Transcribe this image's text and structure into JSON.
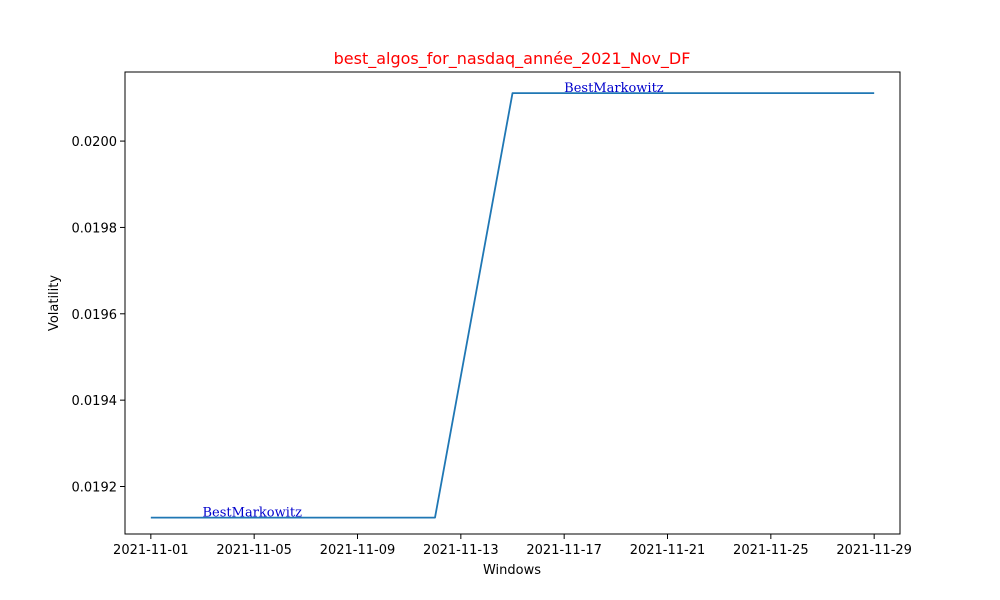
{
  "chart_data": {
    "type": "line",
    "title": "best_algos_for_nasdaq_année_2021_Nov_DF",
    "xlabel": "Windows",
    "ylabel": "Volatility",
    "x": [
      "2021-11-01",
      "2021-11-12",
      "2021-11-15",
      "2021-11-29"
    ],
    "series": [
      {
        "values": [
          0.019128,
          0.019128,
          0.020111,
          0.020111
        ],
        "color": "#1f77b4"
      }
    ],
    "xlim": [
      "2021-10-31",
      "2021-11-30"
    ],
    "ylim": [
      0.01909,
      0.02016
    ],
    "x_ticks": [
      "2021-11-01",
      "2021-11-05",
      "2021-11-09",
      "2021-11-13",
      "2021-11-17",
      "2021-11-21",
      "2021-11-25",
      "2021-11-29"
    ],
    "y_ticks": [
      0.0192,
      0.0194,
      0.0196,
      0.0198,
      0.02
    ],
    "y_tick_labels": [
      "0.0192",
      "0.0194",
      "0.0196",
      "0.0198",
      "0.0200"
    ],
    "annotations": [
      {
        "text": "BestMarkowitz",
        "x": "2021-11-03",
        "y": 0.019128
      },
      {
        "text": "BestMarkowitz",
        "x": "2021-11-17",
        "y": 0.020111
      }
    ],
    "grid": false,
    "title_color": "#ff0000",
    "annotation_color": "#0000cc"
  }
}
